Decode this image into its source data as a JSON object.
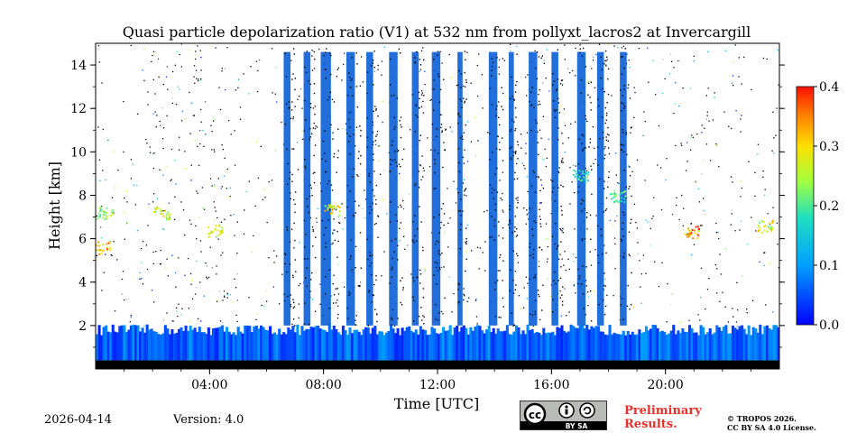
{
  "chart_data": {
    "type": "heatmap",
    "title": "Quasi particle depolarization ratio (V1) at 532 nm from pollyxt_lacros2 at Invercargill",
    "xlabel": "Time [UTC]",
    "ylabel": "Height [km]",
    "xlim_hours": [
      0,
      24
    ],
    "ylim_km": [
      0,
      15
    ],
    "x_ticks": [
      {
        "value": 4,
        "label": "04:00"
      },
      {
        "value": 8,
        "label": "08:00"
      },
      {
        "value": 12,
        "label": "12:00"
      },
      {
        "value": 16,
        "label": "16:00"
      },
      {
        "value": 20,
        "label": "20:00"
      }
    ],
    "y_ticks": [
      {
        "value": 2,
        "label": "2"
      },
      {
        "value": 4,
        "label": "4"
      },
      {
        "value": 6,
        "label": "6"
      },
      {
        "value": 8,
        "label": "8"
      },
      {
        "value": 10,
        "label": "10"
      },
      {
        "value": 12,
        "label": "12"
      },
      {
        "value": 14,
        "label": "14"
      }
    ],
    "colorbar": {
      "range": [
        0.0,
        0.4
      ],
      "colormap": "jet",
      "ticks": [
        {
          "value": 0.0,
          "label": "0.0"
        },
        {
          "value": 0.1,
          "label": "0.1"
        },
        {
          "value": 0.2,
          "label": "0.2"
        },
        {
          "value": 0.3,
          "label": "0.3"
        },
        {
          "value": 0.4,
          "label": "0.4"
        }
      ]
    },
    "features": {
      "boundary_layer_top_km": 1.8,
      "cloud_columns_hours": [
        [
          6.6,
          7.0
        ],
        [
          7.3,
          7.7
        ],
        [
          7.9,
          8.5
        ],
        [
          8.8,
          9.3
        ],
        [
          9.5,
          9.9
        ],
        [
          10.3,
          10.8
        ],
        [
          11.1,
          11.5
        ],
        [
          11.8,
          12.3
        ],
        [
          12.7,
          13.0
        ],
        [
          13.8,
          14.3
        ],
        [
          14.5,
          14.8
        ],
        [
          15.2,
          15.7
        ],
        [
          16.0,
          16.4
        ],
        [
          16.9,
          17.4
        ],
        [
          17.6,
          18.0
        ],
        [
          18.4,
          18.8
        ]
      ],
      "depol_patches": [
        {
          "t": 0.3,
          "h": 7.2,
          "value": 0.25
        },
        {
          "t": 0.2,
          "h": 5.6,
          "value": 0.35
        },
        {
          "t": 2.3,
          "h": 7.2,
          "value": 0.3
        },
        {
          "t": 4.2,
          "h": 6.4,
          "value": 0.3
        },
        {
          "t": 8.3,
          "h": 7.4,
          "value": 0.32
        },
        {
          "t": 17.0,
          "h": 8.9,
          "value": 0.2
        },
        {
          "t": 18.3,
          "h": 8.0,
          "value": 0.22
        },
        {
          "t": 20.9,
          "h": 6.3,
          "value": 0.38
        },
        {
          "t": 23.5,
          "h": 6.6,
          "value": 0.3
        }
      ]
    }
  },
  "footer": {
    "date": "2026-04-14",
    "version": "Version: 4.0",
    "license_badge": "BY SA",
    "preliminary_line1": "Preliminary",
    "preliminary_line2": "Results.",
    "copyright_line1": "© TROPOS 2026.",
    "copyright_line2": "CC BY SA 4.0 License."
  },
  "colors": {
    "preliminary": "#e8302a",
    "background": "#ffffff"
  }
}
